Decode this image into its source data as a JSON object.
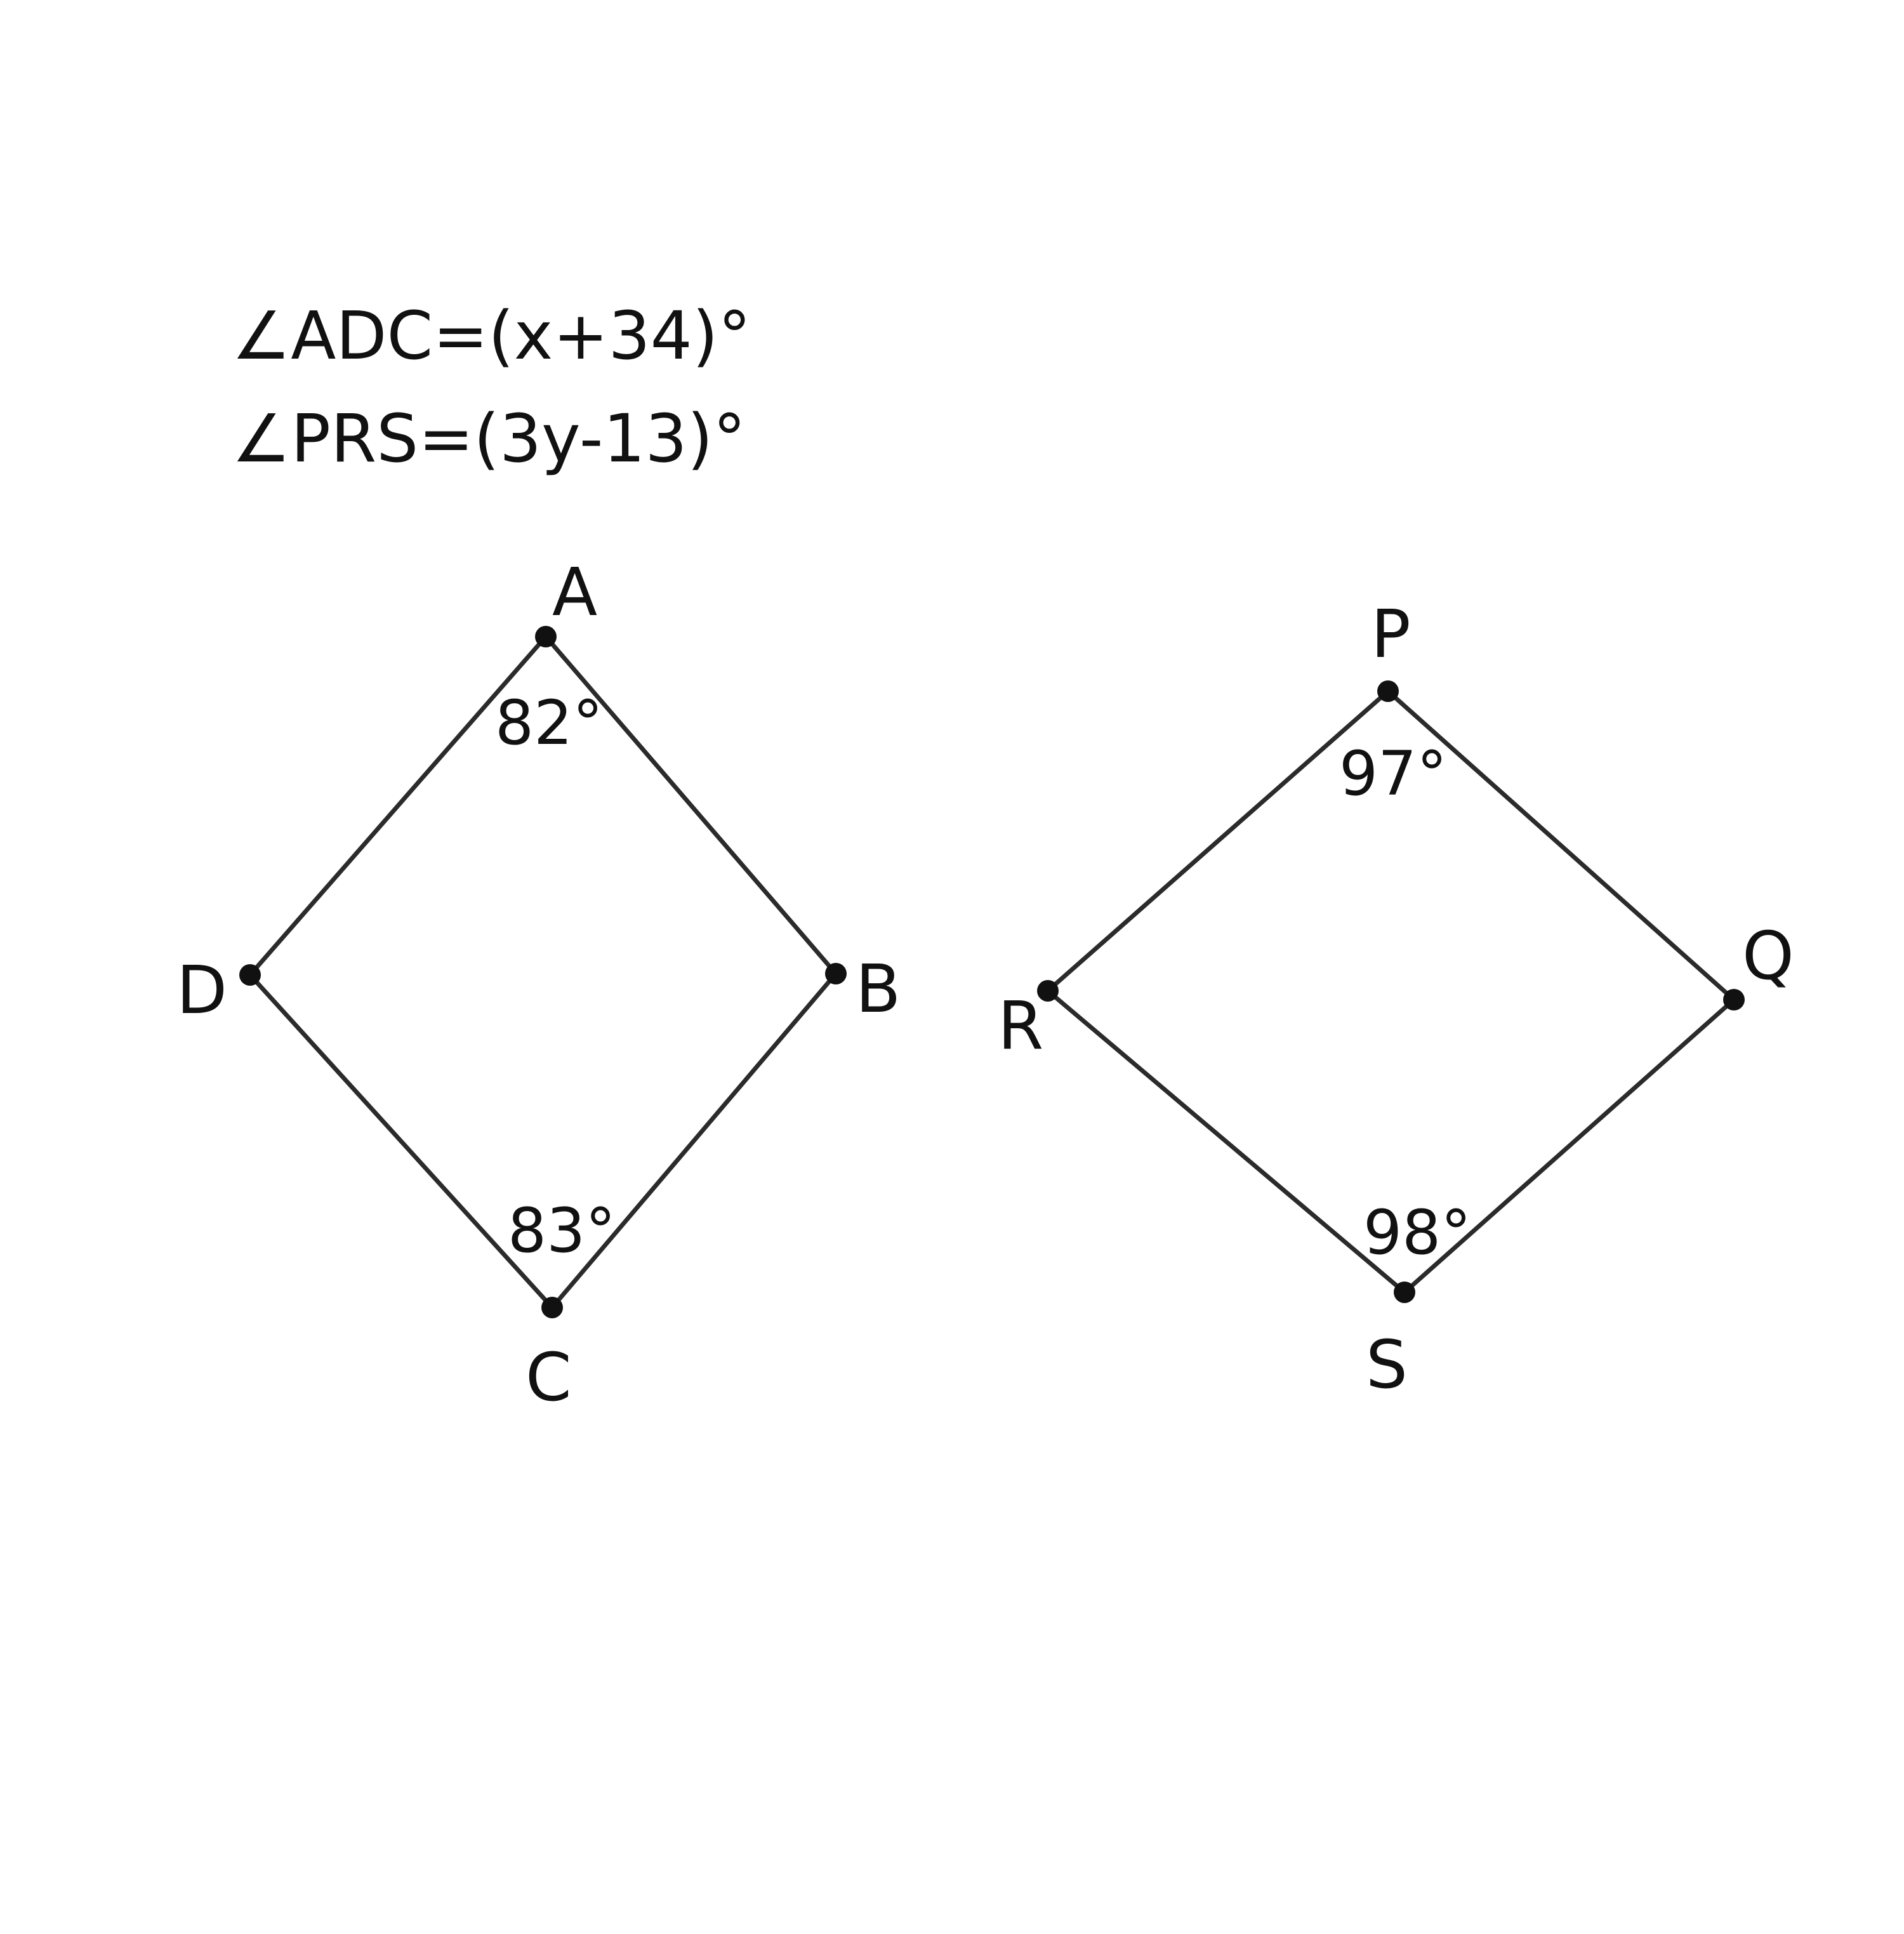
{
  "equations": [
    "∠ADC=(x+34)°",
    "∠PRS=(3y-13)°"
  ],
  "figure1": {
    "vertices": {
      "A": "A",
      "B": "B",
      "C": "C",
      "D": "D"
    },
    "angle_at_A": "82°",
    "angle_at_C": "83°"
  },
  "figure2": {
    "vertices": {
      "P": "P",
      "Q": "Q",
      "R": "R",
      "S": "S"
    },
    "angle_at_P": "97°",
    "angle_at_S": "98°"
  }
}
